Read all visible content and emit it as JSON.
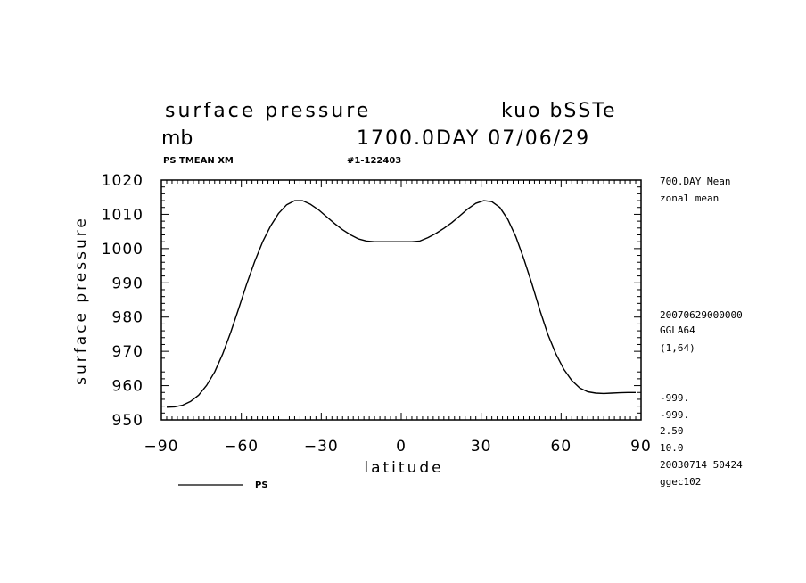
{
  "header": {
    "title_left": "surface pressure",
    "title_right": "kuo bSSTe",
    "units": "mb",
    "day_info": "1700.0DAY 07/06/29",
    "field_tag": "PS TMEAN XM",
    "run_id": "#1-122403"
  },
  "side_info": {
    "mean_label": "700.DAY Mean",
    "zonal_label": "zonal mean",
    "date_code": "20070629000000",
    "grid_name": "GGLA64",
    "grid_index": "(1,64)",
    "undef_1": "-999.",
    "undef_2": "-999.",
    "val_1": "2.50",
    "val_2": "10.0",
    "build_date": "20030714  50424",
    "host": "ggec102"
  },
  "legend": {
    "series_label": "PS"
  },
  "chart_data": {
    "type": "line",
    "title": "surface pressure",
    "xlabel": "latitude",
    "ylabel": "surface pressure",
    "xlim": [
      -90,
      90
    ],
    "ylim": [
      950,
      1020
    ],
    "x_ticks": [
      -90,
      -60,
      -30,
      0,
      30,
      60,
      90
    ],
    "y_ticks": [
      950,
      960,
      970,
      980,
      990,
      1000,
      1010,
      1020
    ],
    "grid": false,
    "legend_position": "bottom-left",
    "series": [
      {
        "name": "PS",
        "color": "#000000",
        "x": [
          -88,
          -85,
          -82,
          -79,
          -76,
          -73,
          -70,
          -67,
          -64,
          -61,
          -58,
          -55,
          -52,
          -49,
          -46,
          -43,
          -40,
          -37,
          -34,
          -31,
          -28,
          -25,
          -22,
          -19,
          -16,
          -13,
          -10,
          -7,
          -4,
          0,
          4,
          7,
          10,
          13,
          16,
          19,
          22,
          25,
          28,
          31,
          34,
          37,
          40,
          43,
          46,
          49,
          52,
          55,
          58,
          61,
          64,
          67,
          70,
          73,
          76,
          79,
          82,
          85,
          88
        ],
        "y": [
          953.7,
          953.8,
          954.3,
          955.4,
          957.2,
          960.1,
          964.0,
          969.2,
          975.5,
          982.5,
          989.6,
          996.2,
          1002.0,
          1006.6,
          1010.3,
          1012.8,
          1014.0,
          1014.0,
          1012.9,
          1011.3,
          1009.3,
          1007.3,
          1005.5,
          1004.0,
          1002.8,
          1002.2,
          1002.0,
          1002.0,
          1002.0,
          1002.0,
          1002.0,
          1002.2,
          1003.2,
          1004.4,
          1005.9,
          1007.6,
          1009.6,
          1011.6,
          1013.2,
          1014.0,
          1013.7,
          1012.0,
          1008.5,
          1003.5,
          997.0,
          989.8,
          982.1,
          975.0,
          969.3,
          964.8,
          961.5,
          959.3,
          958.2,
          957.8,
          957.7,
          957.8,
          957.9,
          958.0,
          958.0
        ]
      }
    ]
  }
}
